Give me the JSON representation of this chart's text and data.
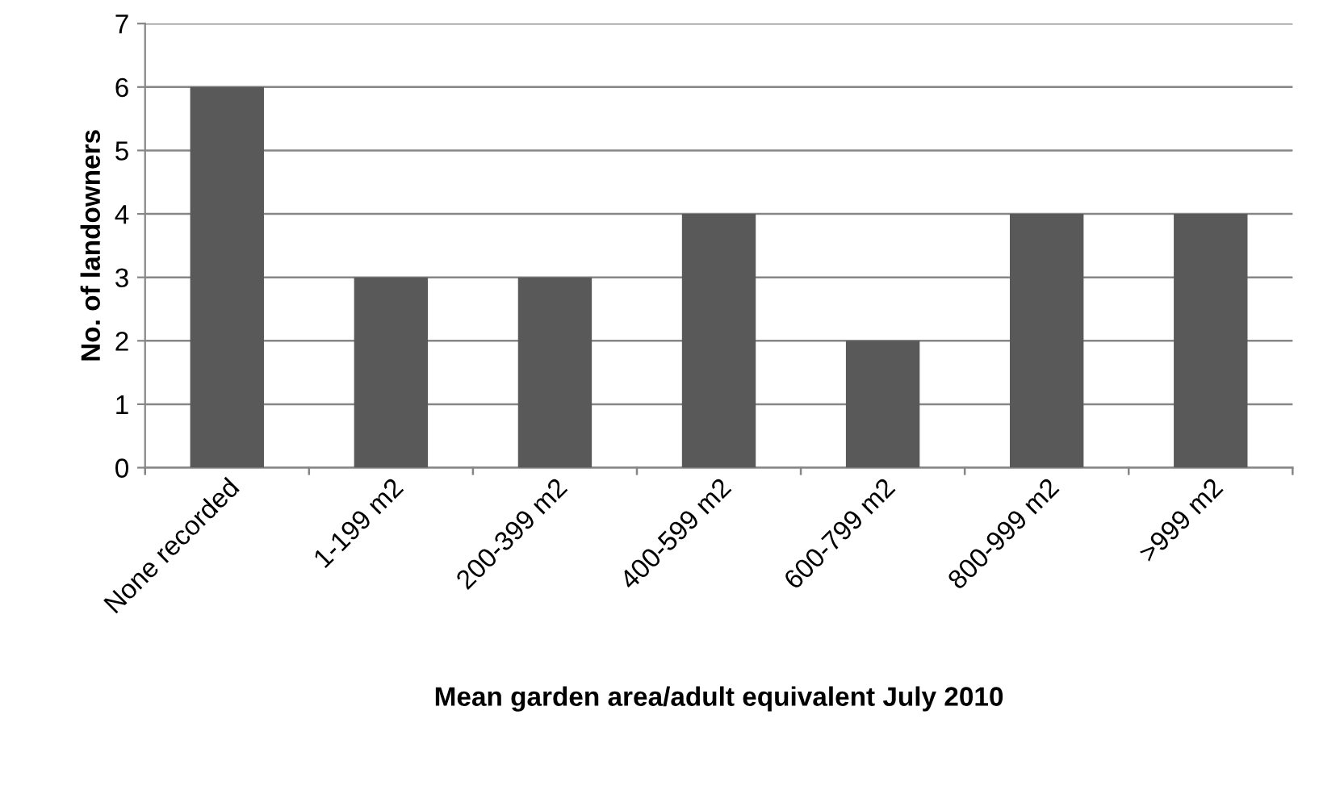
{
  "chart_data": {
    "type": "bar",
    "xlabel": "Mean garden area/adult equivalent July 2010",
    "ylabel": "No. of landowners",
    "categories": [
      "None recorded",
      "1-199 m2",
      "200-399 m2",
      "400-599 m2",
      "600-799 m2",
      "800-999 m2",
      ">999 m2"
    ],
    "values": [
      6,
      3,
      3,
      4,
      2,
      4,
      4
    ],
    "color": "#595959",
    "ylim": [
      0,
      7
    ],
    "yticks": [
      0,
      1,
      2,
      3,
      4,
      5,
      6,
      7
    ],
    "grid": "y"
  }
}
